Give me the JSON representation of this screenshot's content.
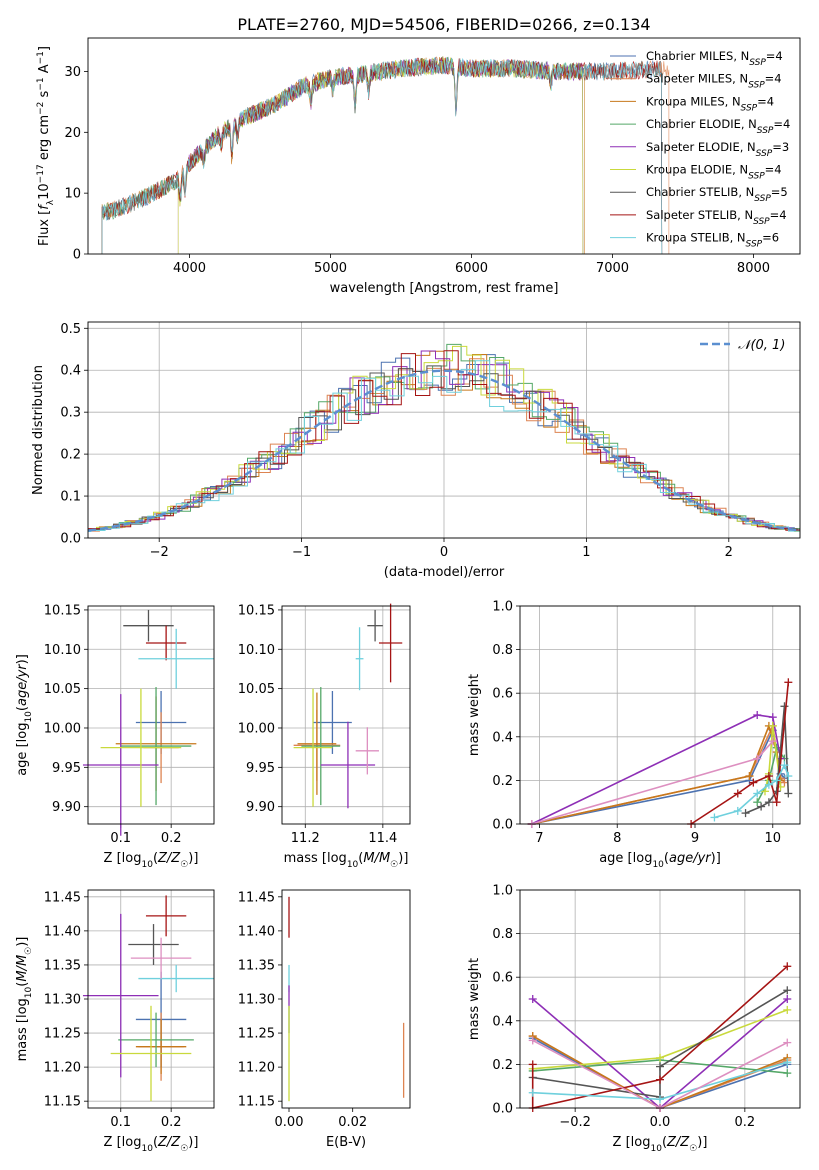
{
  "figure_title": "PLATE=2760, MJD=54506, FIBERID=0266, z=0.134",
  "chart_data": [
    {
      "id": "spectrum",
      "type": "line",
      "title": "PLATE=2760, MJD=54506, FIBERID=0266, z=0.134",
      "xlabel": "wavelength [Angstrom, rest frame]",
      "ylabel": "Flux [f_λ 10^-17 erg cm^-2 s^-1 A^-1]",
      "xlim": [
        3280,
        8330
      ],
      "ylim": [
        0,
        35.5
      ],
      "xticks": [
        4000,
        5000,
        6000,
        7000,
        8000
      ],
      "yticks": [
        0,
        10,
        20,
        30
      ],
      "grid": false,
      "legend_position": "top-right",
      "continuum": {
        "x": [
          3350,
          3500,
          3700,
          3900,
          4000,
          4200,
          4400,
          4600,
          4800,
          5000,
          5200,
          5500,
          5800,
          6000,
          6300,
          6600,
          7000,
          7400
        ],
        "y": [
          6.5,
          7.5,
          9.5,
          12.0,
          15.0,
          19.5,
          22.5,
          24.5,
          27.5,
          29.0,
          29.5,
          30.5,
          31.0,
          30.5,
          30.5,
          30.0,
          30.0,
          30.5
        ]
      },
      "series": [
        {
          "name": "Chabrier MILES, N_SSP=4",
          "color": "#4c72b0",
          "xrange": [
            3380,
            7350
          ]
        },
        {
          "name": "Salpeter MILES, N_SSP=4",
          "color": "#dd8452",
          "xrange": [
            3380,
            7400
          ]
        },
        {
          "name": "Kroupa MILES, N_SSP=4",
          "color": "#c7781c",
          "xrange": [
            3380,
            6800
          ]
        },
        {
          "name": "Chabrier ELODIE, N_SSP=4",
          "color": "#55a868",
          "xrange": [
            3380,
            6790
          ]
        },
        {
          "name": "Salpeter ELODIE, N_SSP=3",
          "color": "#8e2fb6",
          "xrange": [
            3920,
            6790
          ]
        },
        {
          "name": "Kroupa ELODIE, N_SSP=4",
          "color": "#c9d93c",
          "xrange": [
            3920,
            6790
          ]
        },
        {
          "name": "Chabrier STELIB, N_SSP=5",
          "color": "#555555",
          "xrange": [
            3380,
            7350
          ]
        },
        {
          "name": "Salpeter STELIB, N_SSP=4",
          "color": "#a51414",
          "xrange": [
            3380,
            7350
          ]
        },
        {
          "name": "Kroupa STELIB, N_SSP=6",
          "color": "#6fd0dd",
          "xrange": [
            3380,
            7350
          ]
        }
      ]
    },
    {
      "id": "residuals",
      "type": "histogram",
      "xlabel": "(data-model)/error",
      "ylabel": "Normed distribution",
      "xlim": [
        -2.5,
        2.5
      ],
      "ylim": [
        0,
        0.515
      ],
      "xticks": [
        -2,
        -1,
        0,
        1,
        2
      ],
      "yticks": [
        0.0,
        0.1,
        0.2,
        0.3,
        0.4,
        0.5
      ],
      "grid": true,
      "legend_position": "top-right",
      "reference_curve": {
        "name": "𝒩(0, 1)",
        "color": "#5b8fd0"
      },
      "bin_width": 0.1
    },
    {
      "id": "age-vs-Z",
      "type": "errorbar",
      "xlabel": "Z [log10(Z/Z☉)]",
      "ylabel": "age  [log10(age/yr)]",
      "xlim": [
        0.035,
        0.285
      ],
      "ylim": [
        9.878,
        10.155
      ],
      "xticks": [
        0.1,
        0.2
      ],
      "yticks": [
        9.9,
        9.95,
        10.0,
        10.05,
        10.1,
        10.15
      ],
      "grid": true,
      "points": [
        {
          "color": "#4c72b0",
          "x": 0.18,
          "xerr": 0.05,
          "y": 10.007,
          "yerr": 0.04
        },
        {
          "color": "#dd8452",
          "x": 0.18,
          "xerr": 0.035,
          "y": 9.975,
          "yerr": 0.045
        },
        {
          "color": "#c7781c",
          "x": 0.17,
          "xerr": 0.08,
          "y": 9.98,
          "yerr": 0.06
        },
        {
          "color": "#55a868",
          "x": 0.17,
          "xerr": 0.07,
          "y": 9.977,
          "yerr": 0.075
        },
        {
          "color": "#8e2fb6",
          "x": 0.1,
          "xerr": 0.075,
          "y": 9.953,
          "yerr": 0.09
        },
        {
          "color": "#c9d93c",
          "x": 0.14,
          "xerr": 0.08,
          "y": 9.975,
          "yerr": 0.075
        },
        {
          "color": "#555555",
          "x": 0.155,
          "xerr": 0.05,
          "y": 10.13,
          "yerr": 0.02
        },
        {
          "color": "#a51414",
          "x": 0.19,
          "xerr": 0.04,
          "y": 10.108,
          "yerr": 0.022
        },
        {
          "color": "#6fd0dd",
          "x": 0.21,
          "xerr": 0.075,
          "y": 10.088,
          "yerr": 0.038
        }
      ]
    },
    {
      "id": "age-vs-mass",
      "type": "errorbar",
      "xlabel": "mass [log10(M/M☉)]",
      "ylabel": "",
      "xlim": [
        11.14,
        11.47
      ],
      "ylim": [
        9.878,
        10.155
      ],
      "xticks": [
        11.2,
        11.4
      ],
      "yticks": [
        9.9,
        9.95,
        10.0,
        10.05,
        10.1,
        10.15
      ],
      "grid": true,
      "points": [
        {
          "color": "#4c72b0",
          "x": 11.27,
          "xerr": 0.05,
          "y": 10.007,
          "yerr": 0.04
        },
        {
          "color": "#dd8452",
          "x": 11.23,
          "xerr": 0.06,
          "y": 9.978,
          "yerr": 0.045
        },
        {
          "color": "#c7781c",
          "x": 11.23,
          "xerr": 0.05,
          "y": 9.98,
          "yerr": 0.065
        },
        {
          "color": "#55a868",
          "x": 11.24,
          "xerr": 0.05,
          "y": 9.977,
          "yerr": 0.075
        },
        {
          "color": "#8e2fb6",
          "x": 11.31,
          "xerr": 0.07,
          "y": 9.953,
          "yerr": 0.055
        },
        {
          "color": "#c9d93c",
          "x": 11.22,
          "xerr": 0.05,
          "y": 9.975,
          "yerr": 0.075
        },
        {
          "color": "#555555",
          "x": 11.38,
          "xerr": 0.02,
          "y": 10.13,
          "yerr": 0.02
        },
        {
          "color": "#a51414",
          "x": 11.42,
          "xerr": 0.03,
          "y": 10.108,
          "yerr": 0.05
        },
        {
          "color": "#6fd0dd",
          "x": 11.34,
          "xerr": 0.01,
          "y": 10.088,
          "yerr": 0.04
        },
        {
          "color": "#dd8fc0",
          "x": 11.36,
          "xerr": 0.03,
          "y": 9.971,
          "yerr": 0.03
        }
      ]
    },
    {
      "id": "mass-weight-vs-age",
      "type": "line",
      "xlabel": "age  [log10(age/yr)]",
      "ylabel": "mass weight",
      "xlim": [
        6.75,
        10.35
      ],
      "ylim": [
        0,
        1.0
      ],
      "xticks": [
        7,
        8,
        9,
        10
      ],
      "yticks": [
        0.0,
        0.2,
        0.4,
        0.6,
        0.8,
        1.0
      ],
      "grid": true,
      "series": [
        {
          "color": "#4c72b0",
          "x": [
            6.9,
            9.7,
            10.0,
            10.1,
            10.15
          ],
          "y": [
            0.0,
            0.2,
            0.43,
            0.23,
            0.21
          ]
        },
        {
          "color": "#dd8452",
          "x": [
            6.9,
            9.7,
            10.0,
            10.1,
            10.15
          ],
          "y": [
            0.0,
            0.22,
            0.45,
            0.21,
            0.19
          ]
        },
        {
          "color": "#c7781c",
          "x": [
            6.9,
            9.7,
            9.95,
            10.05,
            10.1
          ],
          "y": [
            0.0,
            0.22,
            0.45,
            0.33,
            0.2
          ]
        },
        {
          "color": "#55a868",
          "x": [
            9.8,
            9.95,
            10.05,
            10.15
          ],
          "y": [
            0.1,
            0.2,
            0.35,
            0.3
          ]
        },
        {
          "color": "#8e2fb6",
          "x": [
            6.9,
            9.8,
            10.0,
            10.1
          ],
          "y": [
            0.0,
            0.5,
            0.49,
            0.3
          ]
        },
        {
          "color": "#c9d93c",
          "x": [
            9.9,
            9.95,
            10.0,
            10.1
          ],
          "y": [
            0.15,
            0.23,
            0.45,
            0.17
          ]
        },
        {
          "color": "#555555",
          "x": [
            9.65,
            9.85,
            9.95,
            10.05,
            10.15,
            10.2
          ],
          "y": [
            0.05,
            0.08,
            0.1,
            0.15,
            0.54,
            0.14
          ]
        },
        {
          "color": "#a51414",
          "x": [
            8.95,
            9.55,
            9.75,
            9.95,
            10.05,
            10.2
          ],
          "y": [
            0.0,
            0.14,
            0.19,
            0.22,
            0.1,
            0.65
          ]
        },
        {
          "color": "#6fd0dd",
          "x": [
            9.25,
            9.55,
            9.8,
            9.95,
            10.05,
            10.15,
            10.2
          ],
          "y": [
            0.03,
            0.06,
            0.14,
            0.18,
            0.2,
            0.27,
            0.22
          ]
        },
        {
          "color": "#dd8fc0",
          "x": [
            6.9,
            9.8,
            10.0
          ],
          "y": [
            0.0,
            0.3,
            0.38
          ]
        }
      ]
    },
    {
      "id": "mass-vs-Z",
      "type": "errorbar",
      "xlabel": "Z [log10(Z/Z☉)]",
      "ylabel": "mass [log10(M/M☉)]",
      "xlim": [
        0.035,
        0.285
      ],
      "ylim": [
        11.14,
        11.46
      ],
      "xticks": [
        0.1,
        0.2
      ],
      "yticks": [
        11.15,
        11.2,
        11.25,
        11.3,
        11.35,
        11.4,
        11.45
      ],
      "grid": true,
      "points": [
        {
          "color": "#4c72b0",
          "x": 0.18,
          "xerr": 0.05,
          "y": 11.27,
          "yerr": 0.07
        },
        {
          "color": "#dd8452",
          "x": 0.18,
          "xerr": 0.045,
          "y": 11.23,
          "yerr": 0.05
        },
        {
          "color": "#c7781c",
          "x": 0.18,
          "xerr": 0.05,
          "y": 11.23,
          "yerr": 0.04
        },
        {
          "color": "#55a868",
          "x": 0.17,
          "xerr": 0.075,
          "y": 11.24,
          "yerr": 0.04
        },
        {
          "color": "#8e2fb6",
          "x": 0.1,
          "xerr": 0.075,
          "y": 11.305,
          "yerr": 0.12
        },
        {
          "color": "#c9d93c",
          "x": 0.16,
          "xerr": 0.08,
          "y": 11.22,
          "yerr": 0.07
        },
        {
          "color": "#555555",
          "x": 0.165,
          "xerr": 0.05,
          "y": 11.38,
          "yerr": 0.03
        },
        {
          "color": "#a51414",
          "x": 0.19,
          "xerr": 0.04,
          "y": 11.422,
          "yerr": 0.03
        },
        {
          "color": "#6fd0dd",
          "x": 0.21,
          "xerr": 0.075,
          "y": 11.33,
          "yerr": 0.02
        },
        {
          "color": "#dd8fc0",
          "x": 0.18,
          "xerr": 0.06,
          "y": 11.36,
          "yerr": 0.03
        }
      ]
    },
    {
      "id": "mass-vs-EBV",
      "type": "errorbar",
      "xlabel": "E(B-V)",
      "ylabel": "",
      "xlim": [
        -0.0022,
        0.038
      ],
      "ylim": [
        11.14,
        11.46
      ],
      "xticks": [
        0.0,
        0.02
      ],
      "yticks": [
        11.15,
        11.2,
        11.25,
        11.3,
        11.35,
        11.4,
        11.45
      ],
      "grid": false,
      "points": [
        {
          "color": "#4c72b0",
          "x": 0.0,
          "xerr": 0.0,
          "y": 11.27,
          "yerr": 0.02
        },
        {
          "color": "#dd8452",
          "x": 0.036,
          "xerr": 0.0,
          "y": 11.21,
          "yerr": 0.055
        },
        {
          "color": "#c9d93c",
          "x": 0.0,
          "xerr": 0.0,
          "y": 11.22,
          "yerr": 0.07
        },
        {
          "color": "#a51414",
          "x": 0.0,
          "xerr": 0.0,
          "y": 11.42,
          "yerr": 0.03
        },
        {
          "color": "#6fd0dd",
          "x": 0.0,
          "xerr": 0.0,
          "y": 11.33,
          "yerr": 0.02
        },
        {
          "color": "#8e2fb6",
          "x": 0.0,
          "xerr": 0.0,
          "y": 11.305,
          "yerr": 0.015
        }
      ]
    },
    {
      "id": "mass-weight-vs-Z",
      "type": "line",
      "xlabel": "Z [log10(Z/Z☉)]",
      "ylabel": "mass weight",
      "xlim": [
        -0.33,
        0.33
      ],
      "ylim": [
        0,
        1.0
      ],
      "xticks": [
        -0.2,
        0.0,
        0.2
      ],
      "yticks": [
        0.0,
        0.2,
        0.4,
        0.6,
        0.8,
        1.0
      ],
      "grid": true,
      "series": [
        {
          "color": "#4c72b0",
          "x": [
            -0.3,
            0.0,
            0.3
          ],
          "y": [
            0.32,
            0.0,
            0.2
          ]
        },
        {
          "color": "#dd8452",
          "x": [
            -0.3,
            0.0,
            0.3
          ],
          "y": [
            0.33,
            0.0,
            0.22
          ]
        },
        {
          "color": "#c7781c",
          "x": [
            -0.3,
            0.0,
            0.3
          ],
          "y": [
            0.33,
            0.0,
            0.23
          ]
        },
        {
          "color": "#55a868",
          "x": [
            -0.3,
            0.0,
            0.3
          ],
          "y": [
            0.17,
            0.22,
            0.16
          ]
        },
        {
          "color": "#8e2fb6",
          "x": [
            -0.3,
            0.0,
            0.3
          ],
          "y": [
            0.5,
            0.0,
            0.5
          ]
        },
        {
          "color": "#c9d93c",
          "x": [
            -0.3,
            0.0,
            0.3
          ],
          "y": [
            0.18,
            0.23,
            0.45
          ]
        },
        {
          "color": "#555555",
          "x": [
            -0.3,
            0.0,
            0.0,
            0.3
          ],
          "y": [
            0.14,
            0.05,
            0.19,
            0.54
          ]
        },
        {
          "color": "#a51414",
          "x": [
            -0.3,
            -0.3,
            0.0,
            0.3
          ],
          "y": [
            0.2,
            0.0,
            0.13,
            0.65
          ]
        },
        {
          "color": "#6fd0dd",
          "x": [
            -0.3,
            0.0,
            0.3
          ],
          "y": [
            0.07,
            0.04,
            0.21
          ]
        },
        {
          "color": "#dd8fc0",
          "x": [
            -0.3,
            0.0,
            0.3
          ],
          "y": [
            0.31,
            0.0,
            0.3
          ]
        }
      ]
    }
  ]
}
